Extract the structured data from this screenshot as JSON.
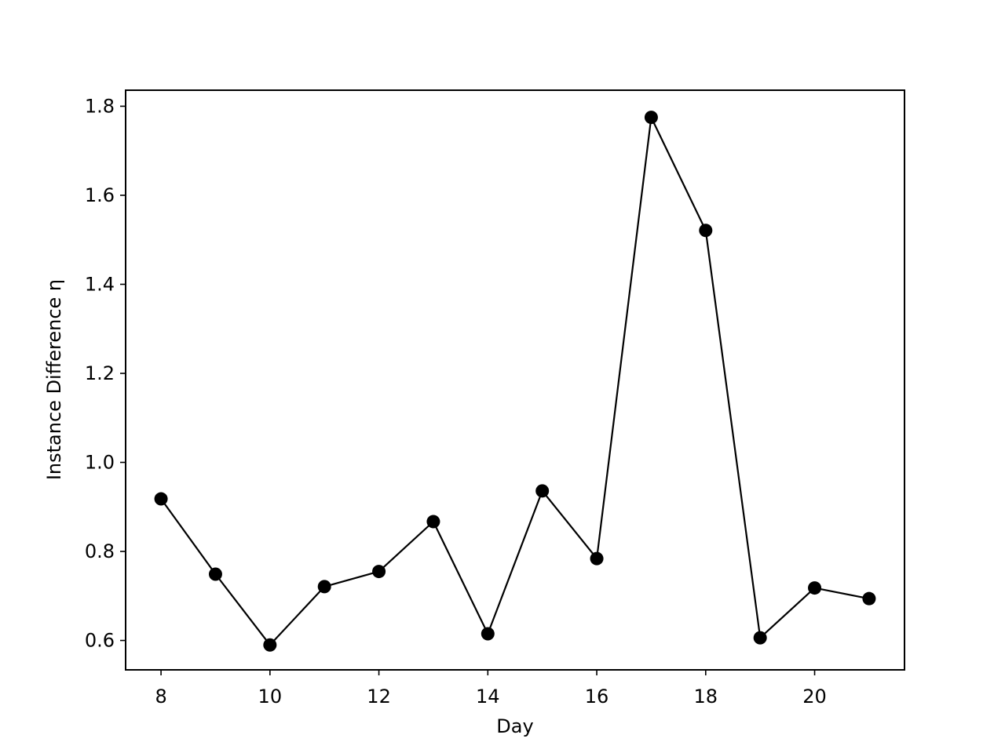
{
  "chart_data": {
    "type": "line",
    "title": "",
    "xlabel": "Day",
    "ylabel": "Instance Difference η",
    "xlim": [
      7.35,
      21.65
    ],
    "ylim": [
      0.534,
      1.836
    ],
    "xticks": [
      8,
      10,
      12,
      14,
      16,
      18,
      20
    ],
    "yticks": [
      0.6,
      0.8,
      1.0,
      1.2,
      1.4,
      1.6,
      1.8
    ],
    "xtick_labels": [
      "8",
      "10",
      "12",
      "14",
      "16",
      "18",
      "20"
    ],
    "ytick_labels": [
      "0.6",
      "0.8",
      "1.0",
      "1.2",
      "1.4",
      "1.6",
      "1.8"
    ],
    "grid": false,
    "legend": "none",
    "series": [
      {
        "color": "#000000",
        "marker": "circle",
        "x": [
          8,
          9,
          10,
          11,
          12,
          13,
          14,
          15,
          16,
          17,
          18,
          19,
          20,
          21
        ],
        "y": [
          0.918,
          0.749,
          0.59,
          0.721,
          0.755,
          0.867,
          0.615,
          0.936,
          0.784,
          1.775,
          1.521,
          0.606,
          0.718,
          0.694
        ]
      }
    ]
  }
}
